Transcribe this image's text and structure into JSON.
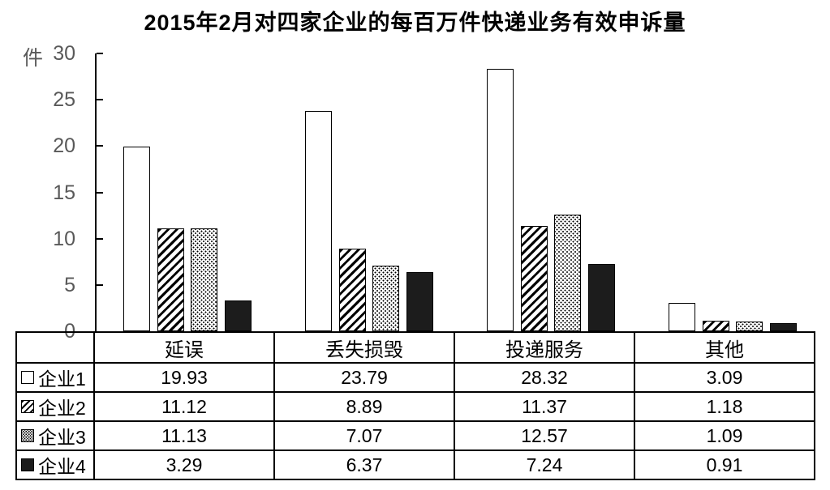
{
  "title": "2015年2月对四家企业的每百万件快递业务有效申诉量",
  "y_axis": {
    "unit_label": "件",
    "tick_values": [
      30,
      25,
      20,
      15,
      10,
      5,
      0
    ],
    "max": 30
  },
  "chart_data": {
    "type": "bar",
    "title": "2015年2月对四家企业的每百万件快递业务有效申诉量",
    "xlabel": "",
    "ylabel": "件",
    "ylim": [
      0,
      30
    ],
    "grid": false,
    "legend_position": "table-left",
    "categories": [
      "延误",
      "丢失损毁",
      "投递服务",
      "其他"
    ],
    "series": [
      {
        "name": "企业1",
        "fill": "white",
        "values": [
          19.93,
          23.79,
          28.32,
          3.09
        ]
      },
      {
        "name": "企业2",
        "fill": "diagonal-hatch",
        "values": [
          11.12,
          8.89,
          11.37,
          1.18
        ]
      },
      {
        "name": "企业3",
        "fill": "dots",
        "values": [
          11.13,
          7.07,
          12.57,
          1.09
        ]
      },
      {
        "name": "企业4",
        "fill": "solid-black",
        "values": [
          3.29,
          6.37,
          7.24,
          0.91
        ]
      }
    ]
  },
  "colors": {
    "background": "#ffffff",
    "axis": "#000000",
    "bar_border": "#000000",
    "solid_bar_fill": "#1c1c1c",
    "tick_label_color": "#595959",
    "table_border": "#000000",
    "text": "#000000"
  }
}
